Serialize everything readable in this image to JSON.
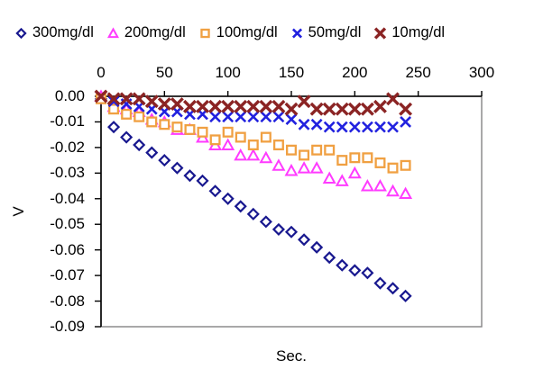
{
  "chart_data": {
    "type": "scatter",
    "title": "",
    "xlabel": "Sec.",
    "ylabel": "V",
    "xlim": [
      0,
      300
    ],
    "ylim": [
      -0.09,
      0
    ],
    "grid": false,
    "legend_position": "top",
    "x_tick_labels": [
      "0",
      "50",
      "100",
      "150",
      "200",
      "250",
      "300"
    ],
    "y_tick_labels": [
      "0.00",
      "-0.01",
      "-0.02",
      "-0.03",
      "-0.04",
      "-0.05",
      "-0.06",
      "-0.07",
      "-0.08",
      "-0.09"
    ],
    "x": [
      0,
      10,
      20,
      30,
      40,
      50,
      60,
      70,
      80,
      90,
      100,
      110,
      120,
      130,
      140,
      150,
      160,
      170,
      180,
      190,
      200,
      210,
      220,
      230,
      240
    ],
    "series": [
      {
        "name": "300mg/dl",
        "marker": "open-diamond",
        "color": "#18188F",
        "values": [
          -0.001,
          -0.012,
          -0.016,
          -0.019,
          -0.022,
          -0.025,
          -0.028,
          -0.031,
          -0.033,
          -0.037,
          -0.04,
          -0.043,
          -0.046,
          -0.049,
          -0.052,
          -0.053,
          -0.056,
          -0.059,
          -0.063,
          -0.066,
          -0.068,
          -0.069,
          -0.073,
          -0.075,
          -0.078
        ]
      },
      {
        "name": "200mg/dl",
        "marker": "open-triangle",
        "color": "#FF3BFF",
        "values": [
          0.0,
          -0.004,
          -0.005,
          -0.006,
          -0.009,
          -0.01,
          -0.013,
          -0.013,
          -0.016,
          -0.019,
          -0.019,
          -0.023,
          -0.023,
          -0.024,
          -0.027,
          -0.029,
          -0.028,
          -0.028,
          -0.032,
          -0.033,
          -0.03,
          -0.035,
          -0.035,
          -0.037,
          -0.038
        ]
      },
      {
        "name": "100mg/dl",
        "marker": "open-square",
        "color": "#F0A042",
        "values": [
          -0.001,
          -0.005,
          -0.007,
          -0.008,
          -0.01,
          -0.011,
          -0.012,
          -0.013,
          -0.014,
          -0.017,
          -0.014,
          -0.016,
          -0.019,
          -0.016,
          -0.019,
          -0.021,
          -0.023,
          -0.021,
          -0.021,
          -0.025,
          -0.024,
          -0.024,
          -0.026,
          -0.028,
          -0.027
        ]
      },
      {
        "name": "50mg/dl",
        "marker": "x-cross",
        "color": "#2121DF",
        "values": [
          0.0,
          -0.002,
          -0.003,
          -0.004,
          -0.005,
          -0.006,
          -0.006,
          -0.007,
          -0.007,
          -0.008,
          -0.008,
          -0.008,
          -0.008,
          -0.008,
          -0.008,
          -0.009,
          -0.011,
          -0.011,
          -0.012,
          -0.012,
          -0.012,
          -0.012,
          -0.012,
          -0.012,
          -0.01
        ]
      },
      {
        "name": "10mg/dl",
        "marker": "x-bold",
        "color": "#8B2424",
        "values": [
          0.0,
          -0.001,
          -0.001,
          -0.001,
          -0.002,
          -0.003,
          -0.003,
          -0.004,
          -0.004,
          -0.004,
          -0.004,
          -0.004,
          -0.004,
          -0.004,
          -0.004,
          -0.005,
          -0.002,
          -0.005,
          -0.005,
          -0.005,
          -0.005,
          -0.005,
          -0.004,
          -0.001,
          -0.005
        ]
      }
    ],
    "colors": {
      "axis": "#000000",
      "frame": "#848284",
      "marker_fill": "#ffffff",
      "background": "#ffffff"
    }
  }
}
